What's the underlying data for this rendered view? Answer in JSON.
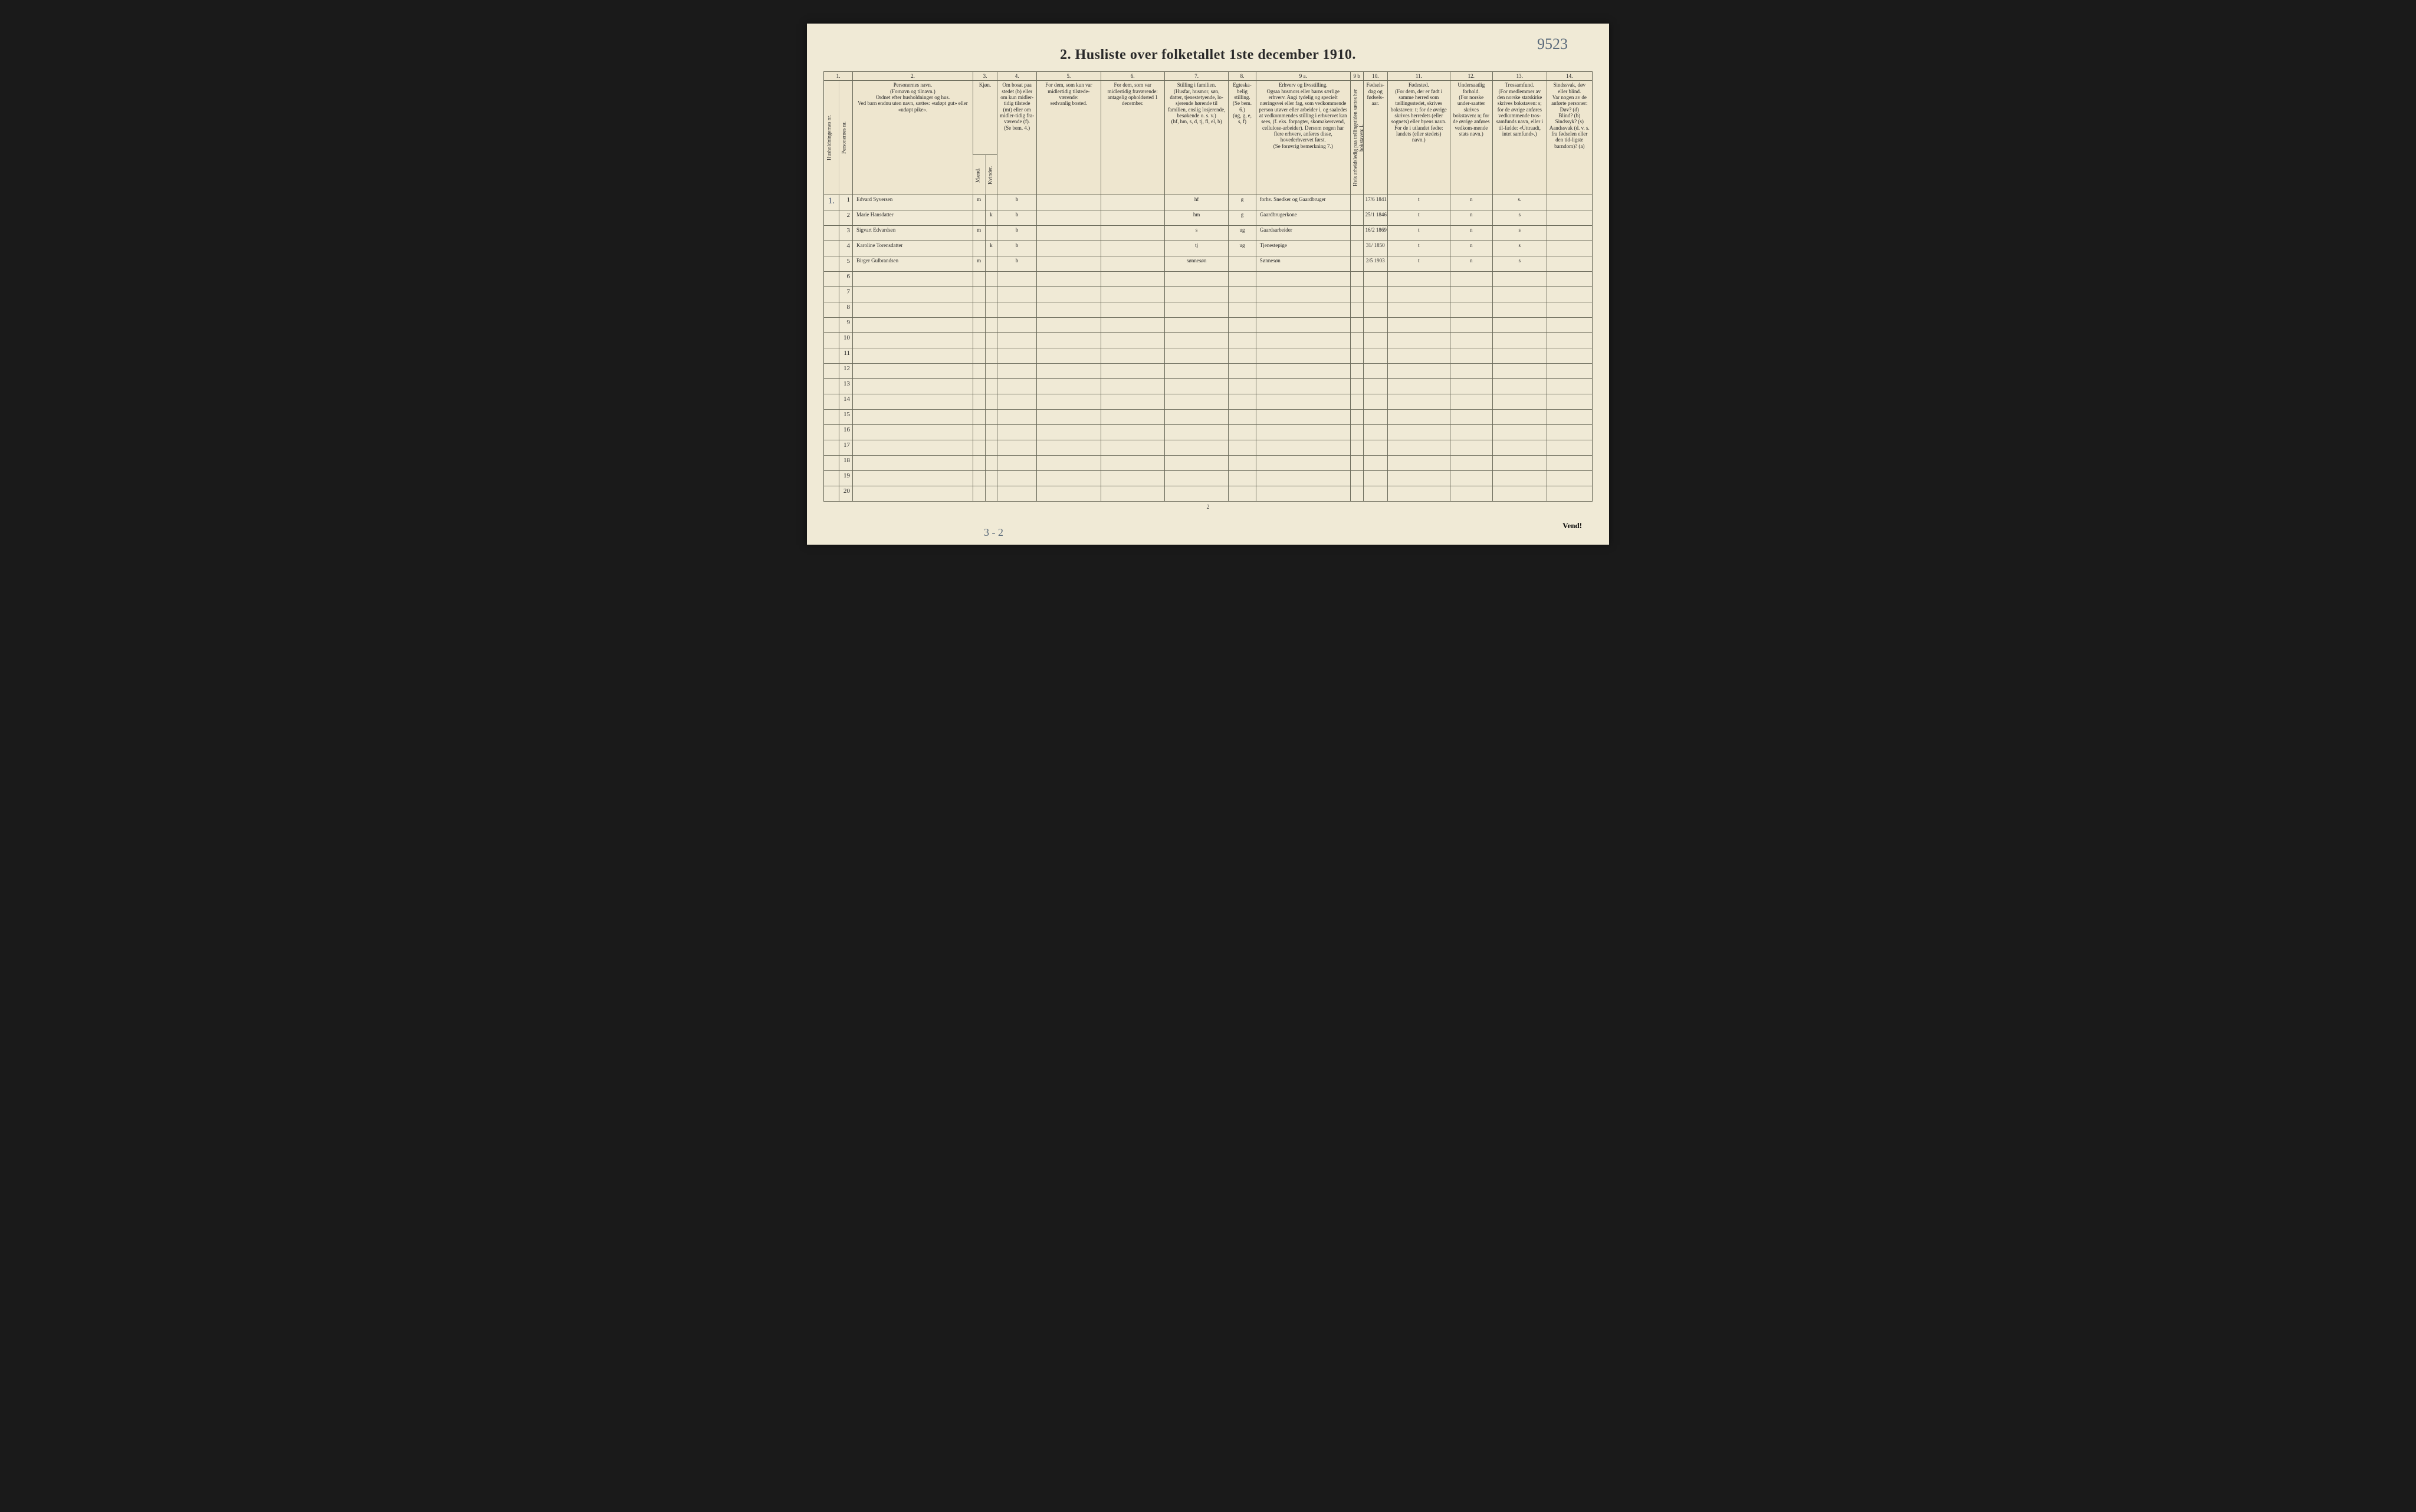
{
  "document": {
    "title": "2.  Husliste over folketallet 1ste december 1910.",
    "topright_note": "9523",
    "page_number_bottom": "2",
    "vend_text": "Vend!",
    "bottom_scrawl": "3 - 2",
    "background_color": "#f0ead6",
    "border_color": "#6a6a5a",
    "ink_color": "#3a4a6a",
    "print_color": "#2a2a2a",
    "title_fontsize": 24,
    "header_fontsize": 9,
    "total_rows": 20
  },
  "columns": {
    "numbers": [
      "1.",
      "",
      "2.",
      "3.",
      "",
      "4.",
      "5.",
      "6.",
      "7.",
      "8.",
      "9 a.",
      "9 b",
      "10.",
      "11.",
      "12.",
      "13.",
      "14."
    ],
    "head1_rot": "Husholdningernes nr.",
    "head1b_rot": "Personernes nr.",
    "head2": "Personernes navn.\n(Fornavn og tilnavn.)\nOrdnet efter husholdninger og hus.\nVed barn endnu uten navn, sættes: «udøpt gut» eller «udøpt pike».",
    "head3_top": "Kjøn.",
    "head3a": "Mænd.",
    "head3b": "Kvinder.",
    "head3_bot": "m.  k.",
    "head4": "Om bosat paa stedet (b) eller om kun midler-tidig tilstede (mt) eller om midler-tidig fra-værende (f).\n(Se bem. 4.)",
    "head5": "For dem, som kun var midlertidig tilstede-værende:\nsedvanlig bosted.",
    "head6": "For dem, som var midlertidig fraværende:\nantagelig opholdssted 1 december.",
    "head7": "Stilling i familien.\n(Husfar, husmor, søn, datter, tjenestetyende, lo-sjerende hørende til familien, enslig losjerende, besøkende o. s. v.)\n(hf, hm, s, d, tj, fl, el, b)",
    "head8": "Egteska-belig stilling.\n(Se bem. 6.)\n(ug, g, e, s, f)",
    "head9a": "Erhverv og livsstilling.\nOgsaa husmors eller barns særlige erhverv. Angi tydelig og specielt næringsvei eller fag, som vedkommende person utøver eller arbeider i, og saaledes at vedkommendes stilling i erhvervet kan sees, (f. eks. forpagter, skomakersvend, cellulose-arbeider). Dersom nogen har flere erhverv, anføres disse, hovederhvervet først.\n(Se forøvrig bemerkning 7.)",
    "head9b": "Hvis arbeidsledig paa tællingstiden sættes her bokstaven: l.",
    "head10": "Fødsels-dag og fødsels-aar.",
    "head11": "Fødested.\n(For dem, der er født i samme herred som tællingsstedet, skrives bokstaven: t; for de øvrige skrives herredets (eller sognets) eller byens navn. For de i utlandet fødte: landets (eller stedets) navn.)",
    "head12": "Undersaatlig forhold.\n(For norske under-saatter skrives bokstaven: n; for de øvrige anføres vedkom-mende stats navn.)",
    "head13": "Trossamfund.\n(For medlemmer av den norske statskirke skrives bokstaven: s; for de øvrige anføres vedkommende tros-samfunds navn, eller i til-fælde: «Uttraadt, intet samfund».)",
    "head14": "Sindssvak, døv eller blind.\nVar nogen av de anførte personer:\nDøv?      (d)\nBlind?     (b)\nSindssyk? (s)\nAandssvak (d. v. s. fra fødselen eller den tid-ligste barndom)?  (a)"
  },
  "rows": [
    {
      "hh": "1.",
      "n": "1",
      "name": "Edvard Syversen",
      "m": "m",
      "k": "",
      "res": "b",
      "c5": "",
      "c6": "",
      "fam": "hf",
      "eg": "g",
      "erhv": "forhv. Snedker og Gaardbruger",
      "c9b": "",
      "dob": "17/6 1841",
      "born": "t",
      "nat": "n",
      "rel": "s.",
      "c14": ""
    },
    {
      "hh": "",
      "n": "2",
      "name": "Marie Hansdatter",
      "m": "",
      "k": "k",
      "res": "b",
      "c5": "",
      "c6": "",
      "fam": "hm",
      "eg": "g",
      "erhv": "Gaardbrugerkone",
      "c9b": "",
      "dob": "25/1 1846",
      "born": "t",
      "nat": "n",
      "rel": "s",
      "c14": ""
    },
    {
      "hh": "",
      "n": "3",
      "name": "Sigvart Edvardsen",
      "m": "m",
      "k": "",
      "res": "b",
      "c5": "",
      "c6": "",
      "fam": "s",
      "eg": "ug",
      "erhv": "Gaardsarbeider",
      "c9b": "",
      "dob": "16/2 1869",
      "born": "t",
      "nat": "n",
      "rel": "s",
      "c14": ""
    },
    {
      "hh": "",
      "n": "4",
      "name": "Karoline Torensdatter",
      "m": "",
      "k": "k",
      "res": "b",
      "c5": "",
      "c6": "",
      "fam": "tj",
      "eg": "ug",
      "erhv": "Tjenestepige",
      "c9b": "",
      "dob": "31/ 1850",
      "born": "t",
      "nat": "n",
      "rel": "s",
      "c14": ""
    },
    {
      "hh": "",
      "n": "5",
      "name": "Birger Gulbrandsen",
      "m": "m",
      "k": "",
      "res": "b",
      "c5": "",
      "c6": "",
      "fam": "sønnesøn",
      "eg": "",
      "erhv": "Sønnesøn",
      "c9b": "",
      "dob": "2/5 1903",
      "born": "t",
      "nat": "n",
      "rel": "s",
      "c14": ""
    }
  ]
}
